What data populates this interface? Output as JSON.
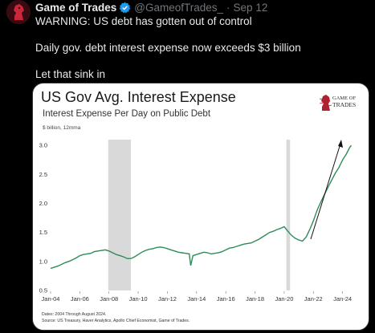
{
  "tweet": {
    "display_name": "Game of Trades",
    "handle": "@GameofTrades_",
    "separator": "·",
    "timestamp": "Sep 12",
    "lines": [
      "WARNING: US debt has gotten out of control",
      "Daily gov. debt interest expense now exceeds $3 billion",
      "Let that sink in"
    ]
  },
  "colors": {
    "background": "#000000",
    "line": "#2e8b57",
    "recession_band": "#d9d9d9",
    "verified": "#1d9bf0",
    "logo_red": "#b0202e"
  },
  "logo": {
    "line1": "GAME OF",
    "line2": "TRADES"
  },
  "chart_data": {
    "type": "line",
    "title": "US Gov Avg. Interest Expense",
    "subtitle": "Interest Expense Per Day on Public Debt",
    "unit_label": "$ billion, 12mma",
    "xlabel": "",
    "ylabel": "",
    "ylim": [
      0.5,
      3.1
    ],
    "y_ticks": [
      "0.5",
      "1.0",
      "1.5",
      "2.0",
      "2.5",
      "3.0"
    ],
    "x_ticks": [
      "Jan-04",
      "Jan-06",
      "Jan-08",
      "Jan-10",
      "Jan-12",
      "Jan-14",
      "Jan-16",
      "Jan-18",
      "Jan-20",
      "Jan-22",
      "Jan-24"
    ],
    "x_range": [
      2004.0,
      2024.9
    ],
    "shaded_periods": [
      [
        2007.95,
        2009.5
      ],
      [
        2020.15,
        2020.4
      ]
    ],
    "series": [
      {
        "x": [
          2004.0,
          2004.25,
          2004.5,
          2004.75,
          2005.0,
          2005.25,
          2005.5,
          2005.75,
          2006.0,
          2006.25,
          2006.5,
          2006.75,
          2007.0,
          2007.25,
          2007.5,
          2007.75,
          2008.0,
          2008.25,
          2008.5,
          2008.75,
          2009.0,
          2009.25,
          2009.5,
          2009.75,
          2010.0,
          2010.25,
          2010.5,
          2010.75,
          2011.0,
          2011.25,
          2011.5,
          2011.75,
          2012.0,
          2012.25,
          2012.5,
          2012.75,
          2013.0,
          2013.25,
          2013.5,
          2013.6,
          2013.75,
          2014.0,
          2014.25,
          2014.5,
          2014.75,
          2015.0,
          2015.25,
          2015.5,
          2015.75,
          2016.0,
          2016.25,
          2016.5,
          2016.75,
          2017.0,
          2017.25,
          2017.5,
          2017.75,
          2018.0,
          2018.25,
          2018.5,
          2018.75,
          2019.0,
          2019.25,
          2019.5,
          2019.75,
          2020.0,
          2020.25,
          2020.5,
          2020.75,
          2021.0,
          2021.25,
          2021.5,
          2021.75,
          2022.0,
          2022.25,
          2022.5,
          2022.75,
          2023.0,
          2023.25,
          2023.5,
          2023.75,
          2024.0,
          2024.25,
          2024.5,
          2024.6
        ],
        "y": [
          0.88,
          0.9,
          0.92,
          0.95,
          0.98,
          1.0,
          1.03,
          1.06,
          1.1,
          1.12,
          1.13,
          1.14,
          1.17,
          1.18,
          1.19,
          1.2,
          1.18,
          1.15,
          1.12,
          1.1,
          1.08,
          1.05,
          1.05,
          1.08,
          1.12,
          1.16,
          1.19,
          1.21,
          1.22,
          1.24,
          1.25,
          1.24,
          1.22,
          1.2,
          1.18,
          1.16,
          1.15,
          1.14,
          1.13,
          0.93,
          1.1,
          1.12,
          1.14,
          1.16,
          1.15,
          1.13,
          1.14,
          1.15,
          1.17,
          1.2,
          1.23,
          1.24,
          1.26,
          1.28,
          1.3,
          1.31,
          1.32,
          1.35,
          1.38,
          1.42,
          1.46,
          1.5,
          1.52,
          1.55,
          1.57,
          1.6,
          1.52,
          1.45,
          1.4,
          1.37,
          1.35,
          1.42,
          1.55,
          1.7,
          1.88,
          2.02,
          2.15,
          2.28,
          2.4,
          2.52,
          2.62,
          2.75,
          2.85,
          2.97,
          3.0
        ]
      }
    ],
    "annotation": "upward arrow",
    "footnotes": [
      "Dates: 2004 Through August 2024.",
      "Source: US Treasury, Haver Analytics, Apollo Chief Economist, Game of Trades."
    ]
  }
}
